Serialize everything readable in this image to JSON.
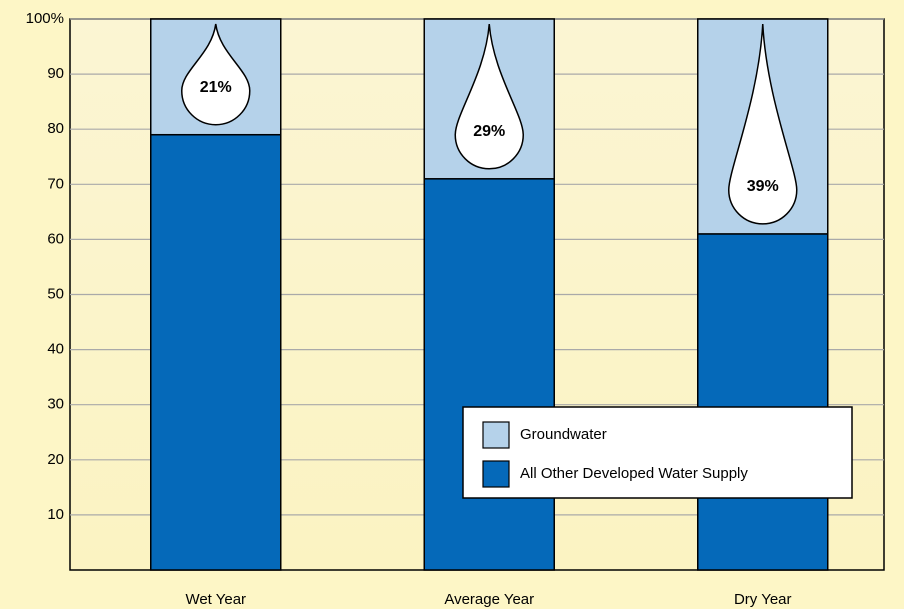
{
  "chart_data": {
    "type": "stacked_bar",
    "categories": [
      "Wet Year",
      "Average Year",
      "Dry Year"
    ],
    "series": [
      {
        "name": "All Other Developed Water Supply",
        "color": "#0569b9",
        "values": [
          79,
          71,
          61
        ]
      },
      {
        "name": "Groundwater",
        "color": "#b5d2ea",
        "values": [
          21,
          29,
          39
        ],
        "value_labels": [
          "21%",
          "29%",
          "39%"
        ]
      }
    ],
    "ylim": [
      0,
      100
    ],
    "yticks": [
      10,
      20,
      30,
      40,
      50,
      60,
      70,
      80,
      90,
      {
        "value": 100,
        "label": "100%"
      }
    ],
    "grid": true,
    "legend": "lower right"
  }
}
